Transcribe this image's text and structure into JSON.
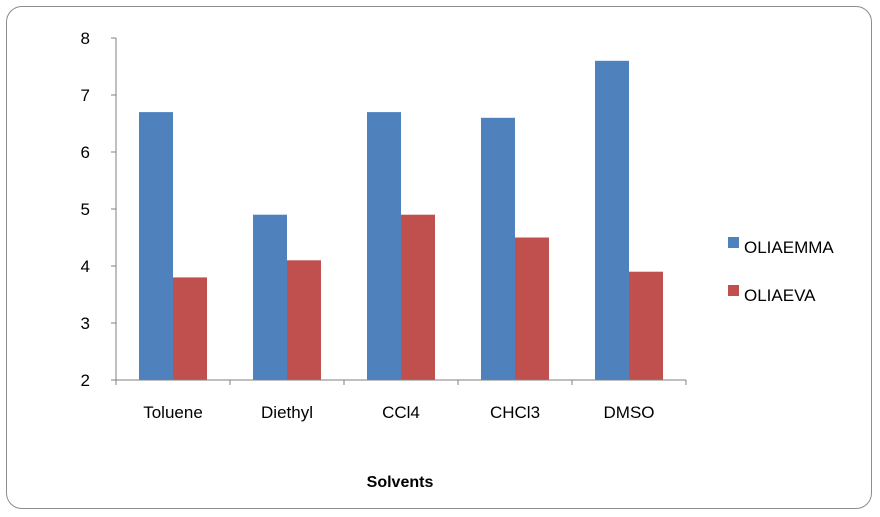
{
  "chart_data": {
    "type": "bar",
    "categories": [
      "Toluene",
      "Diethyl",
      "CCl4",
      "CHCl3",
      "DMSO"
    ],
    "series": [
      {
        "name": "OLIAEMMA",
        "color": "#4f81bd",
        "values": [
          6.7,
          4.9,
          6.7,
          6.6,
          7.6
        ]
      },
      {
        "name": "OLIAEVA",
        "color": "#c0504d",
        "values": [
          3.8,
          4.1,
          4.9,
          4.5,
          3.9
        ]
      }
    ],
    "title": "",
    "xlabel": "Solvents",
    "ylabel": "",
    "ylim": [
      2,
      8
    ],
    "yticks": [
      2,
      3,
      4,
      5,
      6,
      7,
      8
    ],
    "grid": false,
    "legend": "right"
  }
}
